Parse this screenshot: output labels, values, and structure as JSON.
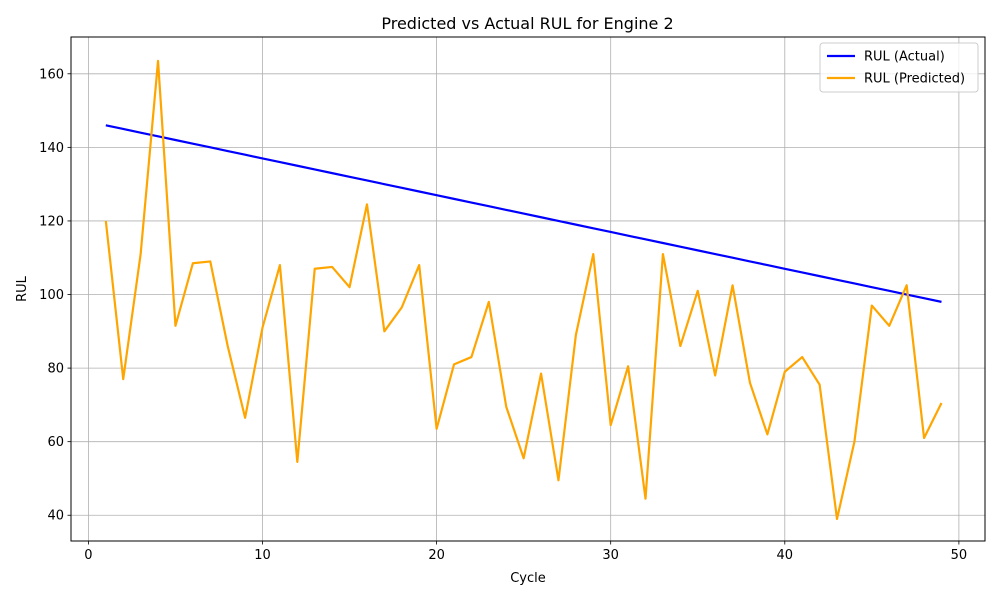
{
  "chart_data": {
    "type": "line",
    "title": "Predicted vs Actual RUL for Engine 2",
    "xlabel": "Cycle",
    "ylabel": "RUL",
    "xlim": [
      -1,
      51.5
    ],
    "ylim": [
      33,
      170
    ],
    "xticks": [
      0,
      10,
      20,
      30,
      40,
      50
    ],
    "yticks": [
      40,
      60,
      80,
      100,
      120,
      140,
      160
    ],
    "grid": true,
    "legend_position": "top-right",
    "x": [
      1,
      2,
      3,
      4,
      5,
      6,
      7,
      8,
      9,
      10,
      11,
      12,
      13,
      14,
      15,
      16,
      17,
      18,
      19,
      20,
      21,
      22,
      23,
      24,
      25,
      26,
      27,
      28,
      29,
      30,
      31,
      32,
      33,
      34,
      35,
      36,
      37,
      38,
      39,
      40,
      41,
      42,
      43,
      44,
      45,
      46,
      47,
      48,
      49
    ],
    "series": [
      {
        "name": "RUL (Actual)",
        "color": "#0000ff",
        "values": [
          146,
          145,
          144,
          143,
          142,
          141,
          140,
          139,
          138,
          137,
          136,
          135,
          134,
          133,
          132,
          131,
          130,
          129,
          128,
          127,
          126,
          125,
          124,
          123,
          122,
          121,
          120,
          119,
          118,
          117,
          116,
          115,
          114,
          113,
          112,
          111,
          110,
          109,
          108,
          107,
          106,
          105,
          104,
          103,
          102,
          101,
          100,
          99,
          98
        ]
      },
      {
        "name": "RUL (Predicted)",
        "color": "#ffa500",
        "values": [
          120,
          77,
          111,
          163.5,
          91.5,
          108.5,
          109,
          86,
          66.5,
          91,
          108,
          54.5,
          107,
          107.5,
          102,
          124.5,
          90,
          96.5,
          108,
          63.5,
          81,
          83,
          98,
          69.5,
          55.5,
          78.5,
          49.5,
          89,
          111,
          64.5,
          80.5,
          44.5,
          111,
          86,
          101,
          78,
          102.5,
          76,
          62,
          79,
          83,
          75.5,
          39,
          60,
          97,
          91.5,
          102.5,
          61,
          70.5
        ]
      }
    ]
  }
}
